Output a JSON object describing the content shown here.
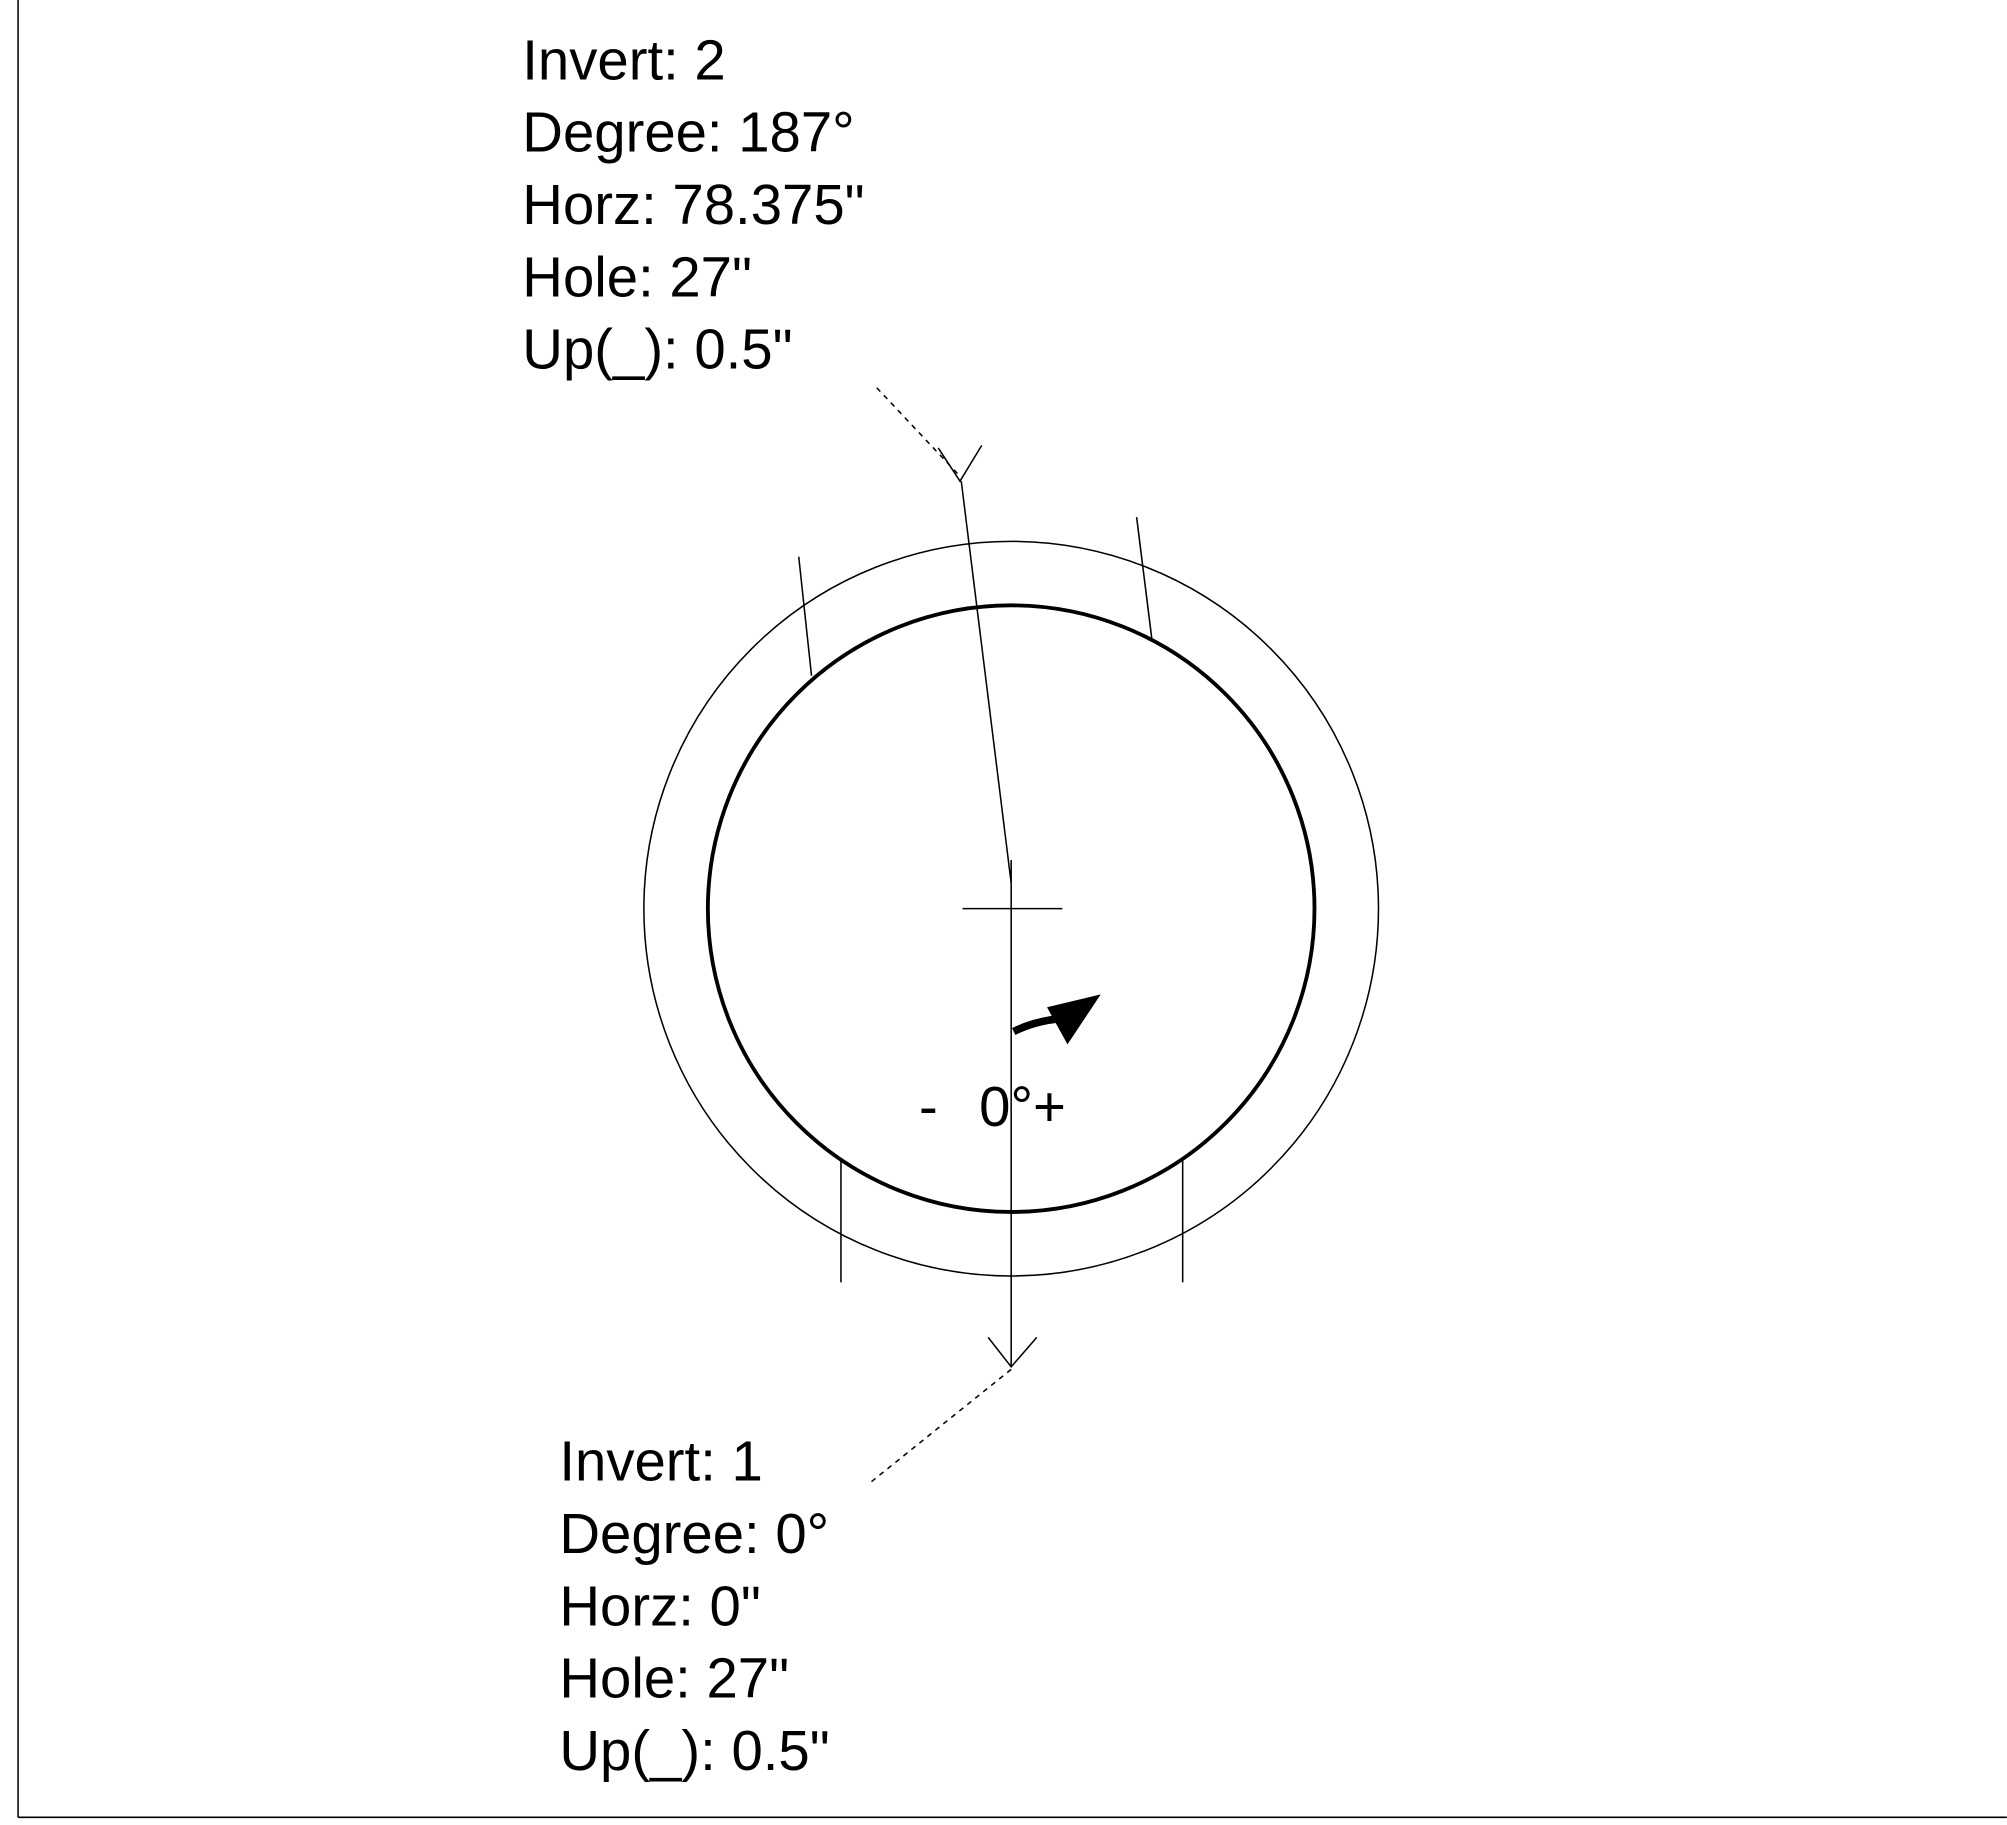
{
  "upper_invert": {
    "lines": [
      "Invert: 2",
      "Degree: 187°",
      "Horz: 78.375\"",
      "Hole: 27\"",
      "Up(_): 0.5\""
    ]
  },
  "lower_invert": {
    "lines": [
      "Invert: 1",
      "Degree: 0°",
      "Horz: 0\"",
      "Hole: 27\"",
      "Up(_): 0.5\""
    ]
  },
  "rotation_label": {
    "minus": "-",
    "plus": "0°+"
  }
}
